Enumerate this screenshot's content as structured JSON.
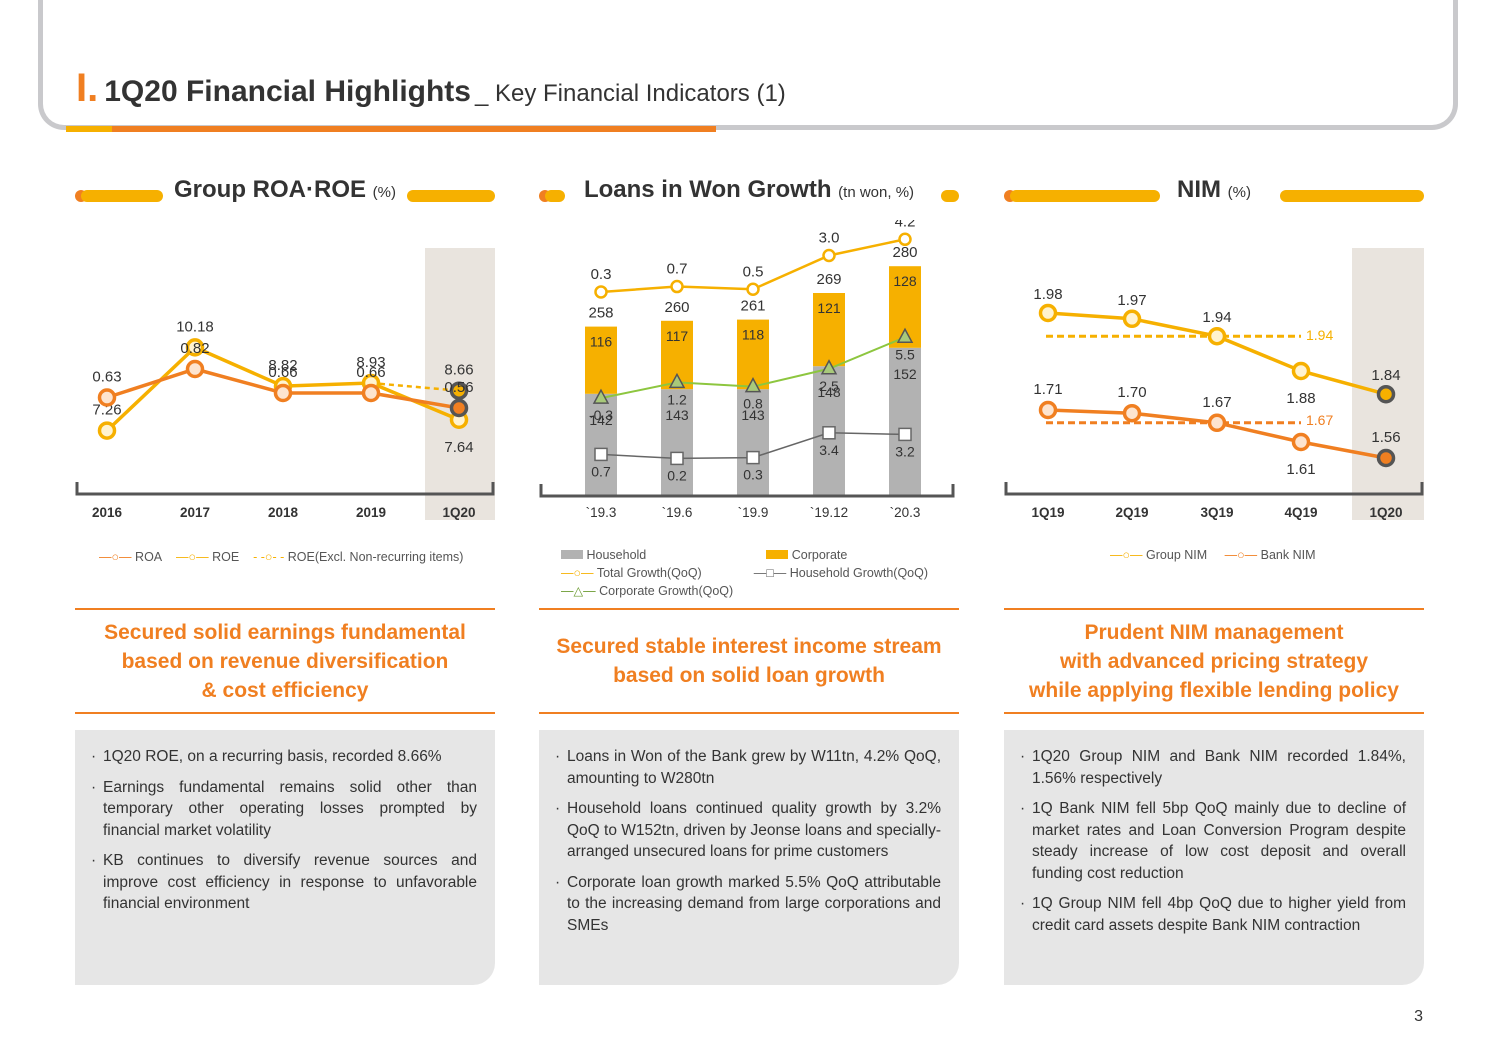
{
  "header": {
    "section_numeral": "I.",
    "title": "1Q20 Financial Highlights",
    "subtitle": "_ Key Financial Indicators (1)"
  },
  "panels": [
    {
      "title": "Group ROA·ROE",
      "unit": "(%)",
      "tagline": [
        "Secured solid earnings fundamental",
        "based on revenue diversification",
        "& cost efficiency"
      ],
      "notes": [
        "1Q20 ROE, on a recurring basis, recorded 8.66%",
        "Earnings fundamental remains solid other than temporary other operating losses prompted by financial market volatility",
        "KB continues to diversify revenue sources and improve cost efficiency in response to unfavorable financial environment"
      ],
      "legend": [
        "ROA",
        "ROE",
        "ROE(Excl. Non-recurring items)"
      ]
    },
    {
      "title": "Loans in Won Growth",
      "unit": "(tn won, %)",
      "tagline": [
        "Secured stable interest income stream",
        "based on solid loan growth"
      ],
      "notes": [
        "Loans in Won of the Bank grew by W11tn, 4.2% QoQ, amounting to W280tn",
        "Household loans continued quality growth by 3.2% QoQ to W152tn, driven by Jeonse loans and specially-arranged unsecured loans for prime customers",
        "Corporate loan growth marked 5.5% QoQ attributable to the increasing demand from large corporations and SMEs"
      ],
      "legend": [
        "Household",
        "Corporate",
        "Total Growth(QoQ)",
        "Household Growth(QoQ)",
        "Corporate Growth(QoQ)"
      ]
    },
    {
      "title": "NIM",
      "unit": "(%)",
      "tagline": [
        "Prudent NIM management",
        "with advanced pricing strategy",
        "while applying flexible lending policy"
      ],
      "notes": [
        "1Q20 Group NIM and Bank NIM recorded 1.84%, 1.56% respectively",
        "1Q Bank NIM fell 5bp QoQ mainly due to decline of market rates and Loan Conversion Program despite steady increase of low cost deposit and overall funding cost reduction",
        "1Q Group NIM fell 4bp QoQ due to higher yield from credit card assets despite Bank NIM contraction"
      ],
      "legend": [
        "Group NIM",
        "Bank NIM"
      ]
    }
  ],
  "chart_data": [
    {
      "type": "line",
      "title": "Group ROA·ROE (%)",
      "categories": [
        "2016",
        "2017",
        "2018",
        "2019",
        "1Q20"
      ],
      "highlighted_category": "1Q20",
      "series": [
        {
          "name": "ROA",
          "values": [
            0.63,
            0.82,
            0.66,
            0.66,
            0.56
          ],
          "color": "#f07f21"
        },
        {
          "name": "ROE",
          "values": [
            7.26,
            10.18,
            8.82,
            8.93,
            7.64
          ],
          "color": "#f6b000"
        },
        {
          "name": "ROE(Excl. Non-recurring items)",
          "values": [
            null,
            null,
            null,
            8.93,
            8.66
          ],
          "color": "#f6b000",
          "style": "dashed"
        }
      ]
    },
    {
      "type": "bar",
      "title": "Loans in Won Growth (tn won, %)",
      "categories": [
        "`19.3",
        "`19.6",
        "`19.9",
        "`19.12",
        "`20.3"
      ],
      "totals": [
        258,
        260,
        261,
        269,
        280
      ],
      "series": [
        {
          "name": "Household",
          "values": [
            142,
            143,
            143,
            148,
            152
          ],
          "color": "#b2b2b2"
        },
        {
          "name": "Corporate",
          "values": [
            116,
            117,
            118,
            121,
            128
          ],
          "color": "#f6b000"
        },
        {
          "name": "Total Growth(QoQ)",
          "values": [
            0.3,
            0.7,
            0.5,
            3.0,
            4.2
          ],
          "color": "#f6b000",
          "kind": "line"
        },
        {
          "name": "Household Growth(QoQ)",
          "values": [
            0.7,
            0.2,
            0.3,
            3.4,
            3.2
          ],
          "color": "#666666",
          "kind": "line"
        },
        {
          "name": "Corporate Growth(QoQ)",
          "values": [
            -0.3,
            1.2,
            0.8,
            2.5,
            5.5
          ],
          "color": "#8dc63f",
          "kind": "line"
        }
      ]
    },
    {
      "type": "line",
      "title": "NIM (%)",
      "categories": [
        "1Q19",
        "2Q19",
        "3Q19",
        "4Q19",
        "1Q20"
      ],
      "highlighted_category": "1Q20",
      "series": [
        {
          "name": "Group NIM",
          "values": [
            1.98,
            1.97,
            1.94,
            1.88,
            1.84
          ],
          "color": "#f6b000"
        },
        {
          "name": "Bank NIM",
          "values": [
            1.71,
            1.7,
            1.67,
            1.61,
            1.56
          ],
          "color": "#f07f21"
        }
      ],
      "reference_lines": [
        {
          "series": "Group NIM",
          "value": 1.94,
          "label": "1.94"
        },
        {
          "series": "Bank NIM",
          "value": 1.67,
          "label": "1.67"
        }
      ]
    }
  ],
  "page_number": "3"
}
